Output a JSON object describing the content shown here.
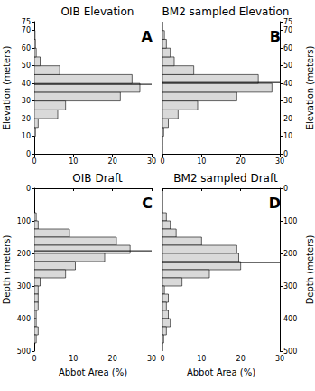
{
  "chart_data": [
    {
      "type": "histogram",
      "orientation": "horizontal",
      "title": "OIB Elevation",
      "annotation": "A",
      "ylabel": "Elevation (meters)",
      "bins": [
        0,
        5,
        10,
        15,
        20,
        25,
        30,
        35,
        40,
        45,
        50,
        55,
        60,
        65,
        70,
        75
      ],
      "values": [
        0,
        0,
        0.3,
        1,
        6,
        8,
        22,
        27,
        25,
        6.5,
        1.5,
        0.5,
        0.3,
        0.2,
        0
      ],
      "mean": 39.5,
      "color": "#d9d9d9",
      "xlim": [
        0,
        30
      ],
      "xticks": [
        0,
        10,
        20,
        30
      ],
      "ylim": [
        0,
        75
      ],
      "yticks": [
        0,
        10,
        20,
        30,
        40,
        50,
        60,
        70
      ]
    },
    {
      "type": "histogram",
      "orientation": "horizontal",
      "title": "BM2 sampled Elevation",
      "annotation": "B",
      "ylabel": "Elevation (meters)",
      "bins": [
        0,
        5,
        10,
        15,
        20,
        25,
        30,
        35,
        40,
        45,
        50,
        55,
        60,
        65,
        70,
        75
      ],
      "values": [
        0,
        0,
        0.3,
        1.5,
        4,
        9,
        19,
        28,
        24.5,
        8,
        3,
        2,
        1,
        0.5,
        0
      ],
      "mean": 40.5,
      "color": "#d9d9d9",
      "xlim": [
        0,
        30
      ],
      "xticks": [
        0,
        10,
        20,
        30
      ],
      "ylim": [
        0,
        75
      ],
      "yticks": [
        0,
        10,
        20,
        30,
        40,
        50,
        60,
        70
      ]
    },
    {
      "type": "histogram",
      "orientation": "horizontal",
      "title": "OIB Draft",
      "annotation": "C",
      "ylabel": "Depth (meters)",
      "xlabel": "Abbot Area (%)",
      "bins": [
        0,
        25,
        50,
        75,
        100,
        125,
        150,
        175,
        200,
        225,
        250,
        275,
        300,
        325,
        350,
        375,
        400,
        425,
        450,
        475,
        500
      ],
      "values": [
        0,
        0,
        0,
        0.5,
        1,
        9,
        21,
        24.5,
        18,
        10.5,
        8,
        1.5,
        1,
        1,
        1,
        0.5,
        0.5,
        1,
        0.5,
        0
      ],
      "mean": 192,
      "color": "#d9d9d9",
      "xlim": [
        0,
        30
      ],
      "xticks": [
        0,
        10,
        20,
        30
      ],
      "ylim": [
        500,
        0
      ],
      "yticks": [
        0,
        100,
        200,
        300,
        400,
        500
      ]
    },
    {
      "type": "histogram",
      "orientation": "horizontal",
      "title": "BM2 sampled Draft",
      "annotation": "D",
      "ylabel": "Depth (meters)",
      "xlabel": "Abbot Area (%)",
      "bins": [
        0,
        25,
        50,
        75,
        100,
        125,
        150,
        175,
        200,
        225,
        250,
        275,
        300,
        325,
        350,
        375,
        400,
        425,
        450,
        475,
        500
      ],
      "values": [
        0,
        0,
        0,
        1,
        2,
        3.5,
        10,
        19,
        19.5,
        20,
        12,
        5,
        0.5,
        1.5,
        1,
        1.5,
        2,
        1,
        0.3,
        0
      ],
      "mean": 228,
      "color": "#d9d9d9",
      "xlim": [
        0,
        30
      ],
      "xticks": [
        0,
        10,
        20,
        30
      ],
      "ylim": [
        500,
        0
      ],
      "yticks": [
        0,
        100,
        200,
        300,
        400,
        500
      ]
    }
  ]
}
